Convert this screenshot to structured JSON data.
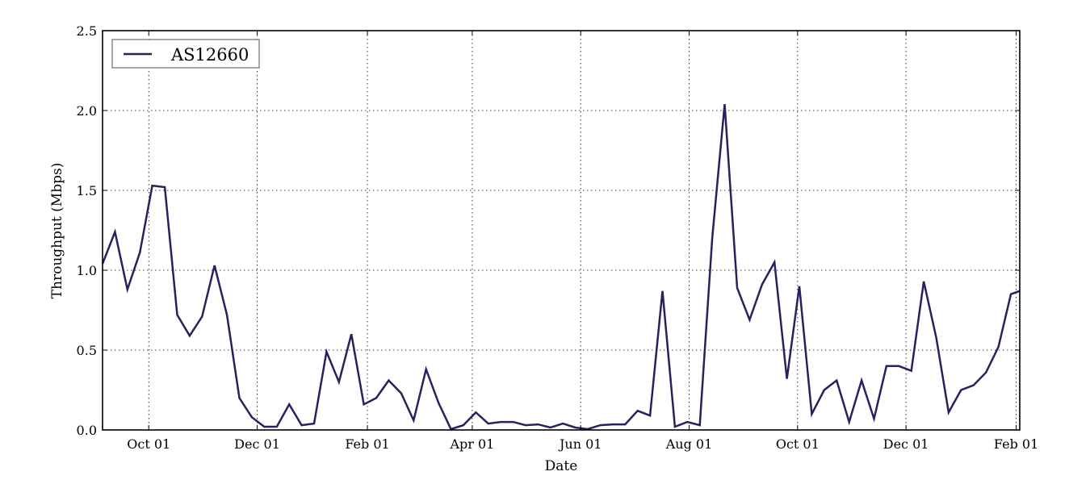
{
  "chart_data": {
    "type": "line",
    "xlabel": "Date",
    "ylabel": "Throughput (Mbps)",
    "x_ticks": [
      {
        "label": "Oct 01",
        "date": "2013-10-01"
      },
      {
        "label": "Dec 01",
        "date": "2013-12-01"
      },
      {
        "label": "Feb 01",
        "date": "2014-02-01"
      },
      {
        "label": "Apr 01",
        "date": "2014-04-01"
      },
      {
        "label": "Jun 01",
        "date": "2014-06-01"
      },
      {
        "label": "Aug 01",
        "date": "2014-08-01"
      },
      {
        "label": "Oct 01",
        "date": "2014-10-01"
      },
      {
        "label": "Dec 01",
        "date": "2014-12-01"
      },
      {
        "label": "Feb 01",
        "date": "2015-02-01"
      }
    ],
    "y_ticks": [
      "0.0",
      "0.5",
      "1.0",
      "1.5",
      "2.0",
      "2.5"
    ],
    "xlim": [
      "2013-09-05",
      "2015-02-03"
    ],
    "ylim": [
      0,
      2.5
    ],
    "grid": true,
    "legend": {
      "position": "top-left",
      "entries": [
        "AS12660"
      ]
    },
    "series": [
      {
        "name": "AS12660",
        "color": "#2d1f5e",
        "points": [
          [
            "2013-09-05",
            1.04
          ],
          [
            "2013-09-12",
            1.24
          ],
          [
            "2013-09-19",
            0.88
          ],
          [
            "2013-09-26",
            1.11
          ],
          [
            "2013-10-03",
            1.53
          ],
          [
            "2013-10-10",
            1.52
          ],
          [
            "2013-10-17",
            0.72
          ],
          [
            "2013-10-24",
            0.59
          ],
          [
            "2013-10-31",
            0.71
          ],
          [
            "2013-11-07",
            1.03
          ],
          [
            "2013-11-14",
            0.72
          ],
          [
            "2013-11-21",
            0.2
          ],
          [
            "2013-11-28",
            0.08
          ],
          [
            "2013-12-05",
            0.02
          ],
          [
            "2013-12-12",
            0.02
          ],
          [
            "2013-12-19",
            0.16
          ],
          [
            "2013-12-26",
            0.03
          ],
          [
            "2014-01-02",
            0.04
          ],
          [
            "2014-01-09",
            0.49
          ],
          [
            "2014-01-16",
            0.3
          ],
          [
            "2014-01-23",
            0.6
          ],
          [
            "2014-01-30",
            0.16
          ],
          [
            "2014-02-06",
            0.2
          ],
          [
            "2014-02-13",
            0.31
          ],
          [
            "2014-02-20",
            0.23
          ],
          [
            "2014-02-27",
            0.06
          ],
          [
            "2014-03-06",
            0.38
          ],
          [
            "2014-03-13",
            0.17
          ],
          [
            "2014-03-20",
            0.005
          ],
          [
            "2014-03-27",
            0.03
          ],
          [
            "2014-04-03",
            0.11
          ],
          [
            "2014-04-10",
            0.04
          ],
          [
            "2014-04-17",
            0.05
          ],
          [
            "2014-04-24",
            0.05
          ],
          [
            "2014-05-01",
            0.03
          ],
          [
            "2014-05-08",
            0.035
          ],
          [
            "2014-05-15",
            0.015
          ],
          [
            "2014-05-22",
            0.04
          ],
          [
            "2014-05-29",
            0.015
          ],
          [
            "2014-06-05",
            0.005
          ],
          [
            "2014-06-12",
            0.03
          ],
          [
            "2014-06-19",
            0.035
          ],
          [
            "2014-06-26",
            0.035
          ],
          [
            "2014-07-03",
            0.12
          ],
          [
            "2014-07-10",
            0.09
          ],
          [
            "2014-07-17",
            0.87
          ],
          [
            "2014-07-24",
            0.02
          ],
          [
            "2014-07-31",
            0.05
          ],
          [
            "2014-08-07",
            0.03
          ],
          [
            "2014-08-14",
            1.2
          ],
          [
            "2014-08-21",
            2.04
          ],
          [
            "2014-08-28",
            0.89
          ],
          [
            "2014-09-04",
            0.69
          ],
          [
            "2014-09-11",
            0.91
          ],
          [
            "2014-09-18",
            1.05
          ],
          [
            "2014-09-25",
            0.32
          ],
          [
            "2014-10-02",
            0.9
          ],
          [
            "2014-10-09",
            0.1
          ],
          [
            "2014-10-16",
            0.25
          ],
          [
            "2014-10-23",
            0.31
          ],
          [
            "2014-10-30",
            0.05
          ],
          [
            "2014-11-06",
            0.31
          ],
          [
            "2014-11-13",
            0.07
          ],
          [
            "2014-11-20",
            0.4
          ],
          [
            "2014-11-27",
            0.4
          ],
          [
            "2014-12-04",
            0.37
          ],
          [
            "2014-12-11",
            0.93
          ],
          [
            "2014-12-18",
            0.58
          ],
          [
            "2014-12-25",
            0.11
          ],
          [
            "2015-01-01",
            0.25
          ],
          [
            "2015-01-08",
            0.28
          ],
          [
            "2015-01-15",
            0.36
          ],
          [
            "2015-01-22",
            0.52
          ],
          [
            "2015-01-29",
            0.85
          ],
          [
            "2015-02-03",
            0.87
          ]
        ]
      }
    ]
  }
}
